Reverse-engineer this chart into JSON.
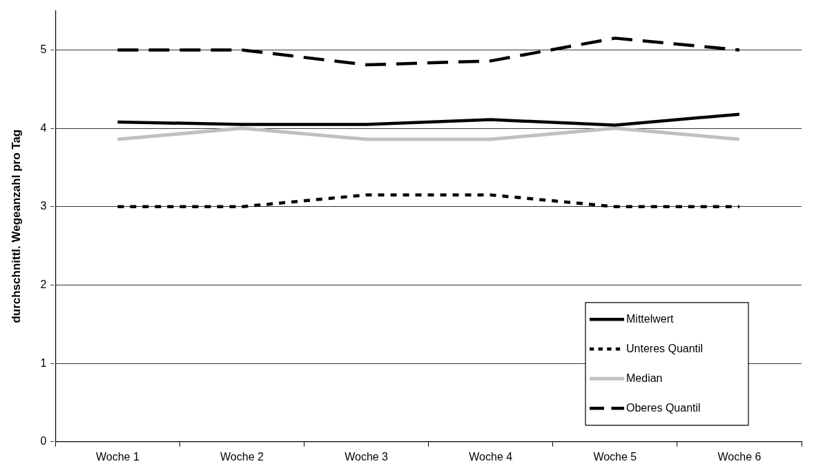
{
  "chart_data": {
    "type": "line",
    "ylabel": "durchschnittl. Wegeanzahl pro Tag",
    "categories": [
      "Woche 1",
      "Woche 2",
      "Woche 3",
      "Woche 4",
      "Woche 5",
      "Woche 6"
    ],
    "series": [
      {
        "name": "Mittelwert",
        "color": "#000000",
        "line_style": "solid",
        "values": [
          4.08,
          4.05,
          4.05,
          4.11,
          4.04,
          4.18
        ]
      },
      {
        "name": "Unteres Quantil",
        "color": "#000000",
        "line_style": "dotted",
        "values": [
          3,
          3,
          3.15,
          3.15,
          3,
          3
        ]
      },
      {
        "name": "Median",
        "color": "#c0c0c0",
        "line_style": "solid",
        "values": [
          3.86,
          4,
          3.86,
          3.86,
          4,
          3.86
        ]
      },
      {
        "name": "Oberes Quantil",
        "color": "#000000",
        "line_style": "dashed",
        "values": [
          5,
          5,
          4.81,
          4.86,
          5.15,
          5
        ]
      }
    ],
    "ylim": [
      0,
      5.5
    ],
    "yticks": [
      0,
      1,
      2,
      3,
      4,
      5
    ],
    "grid": "y",
    "legend": "bottom right",
    "marker": "none"
  }
}
